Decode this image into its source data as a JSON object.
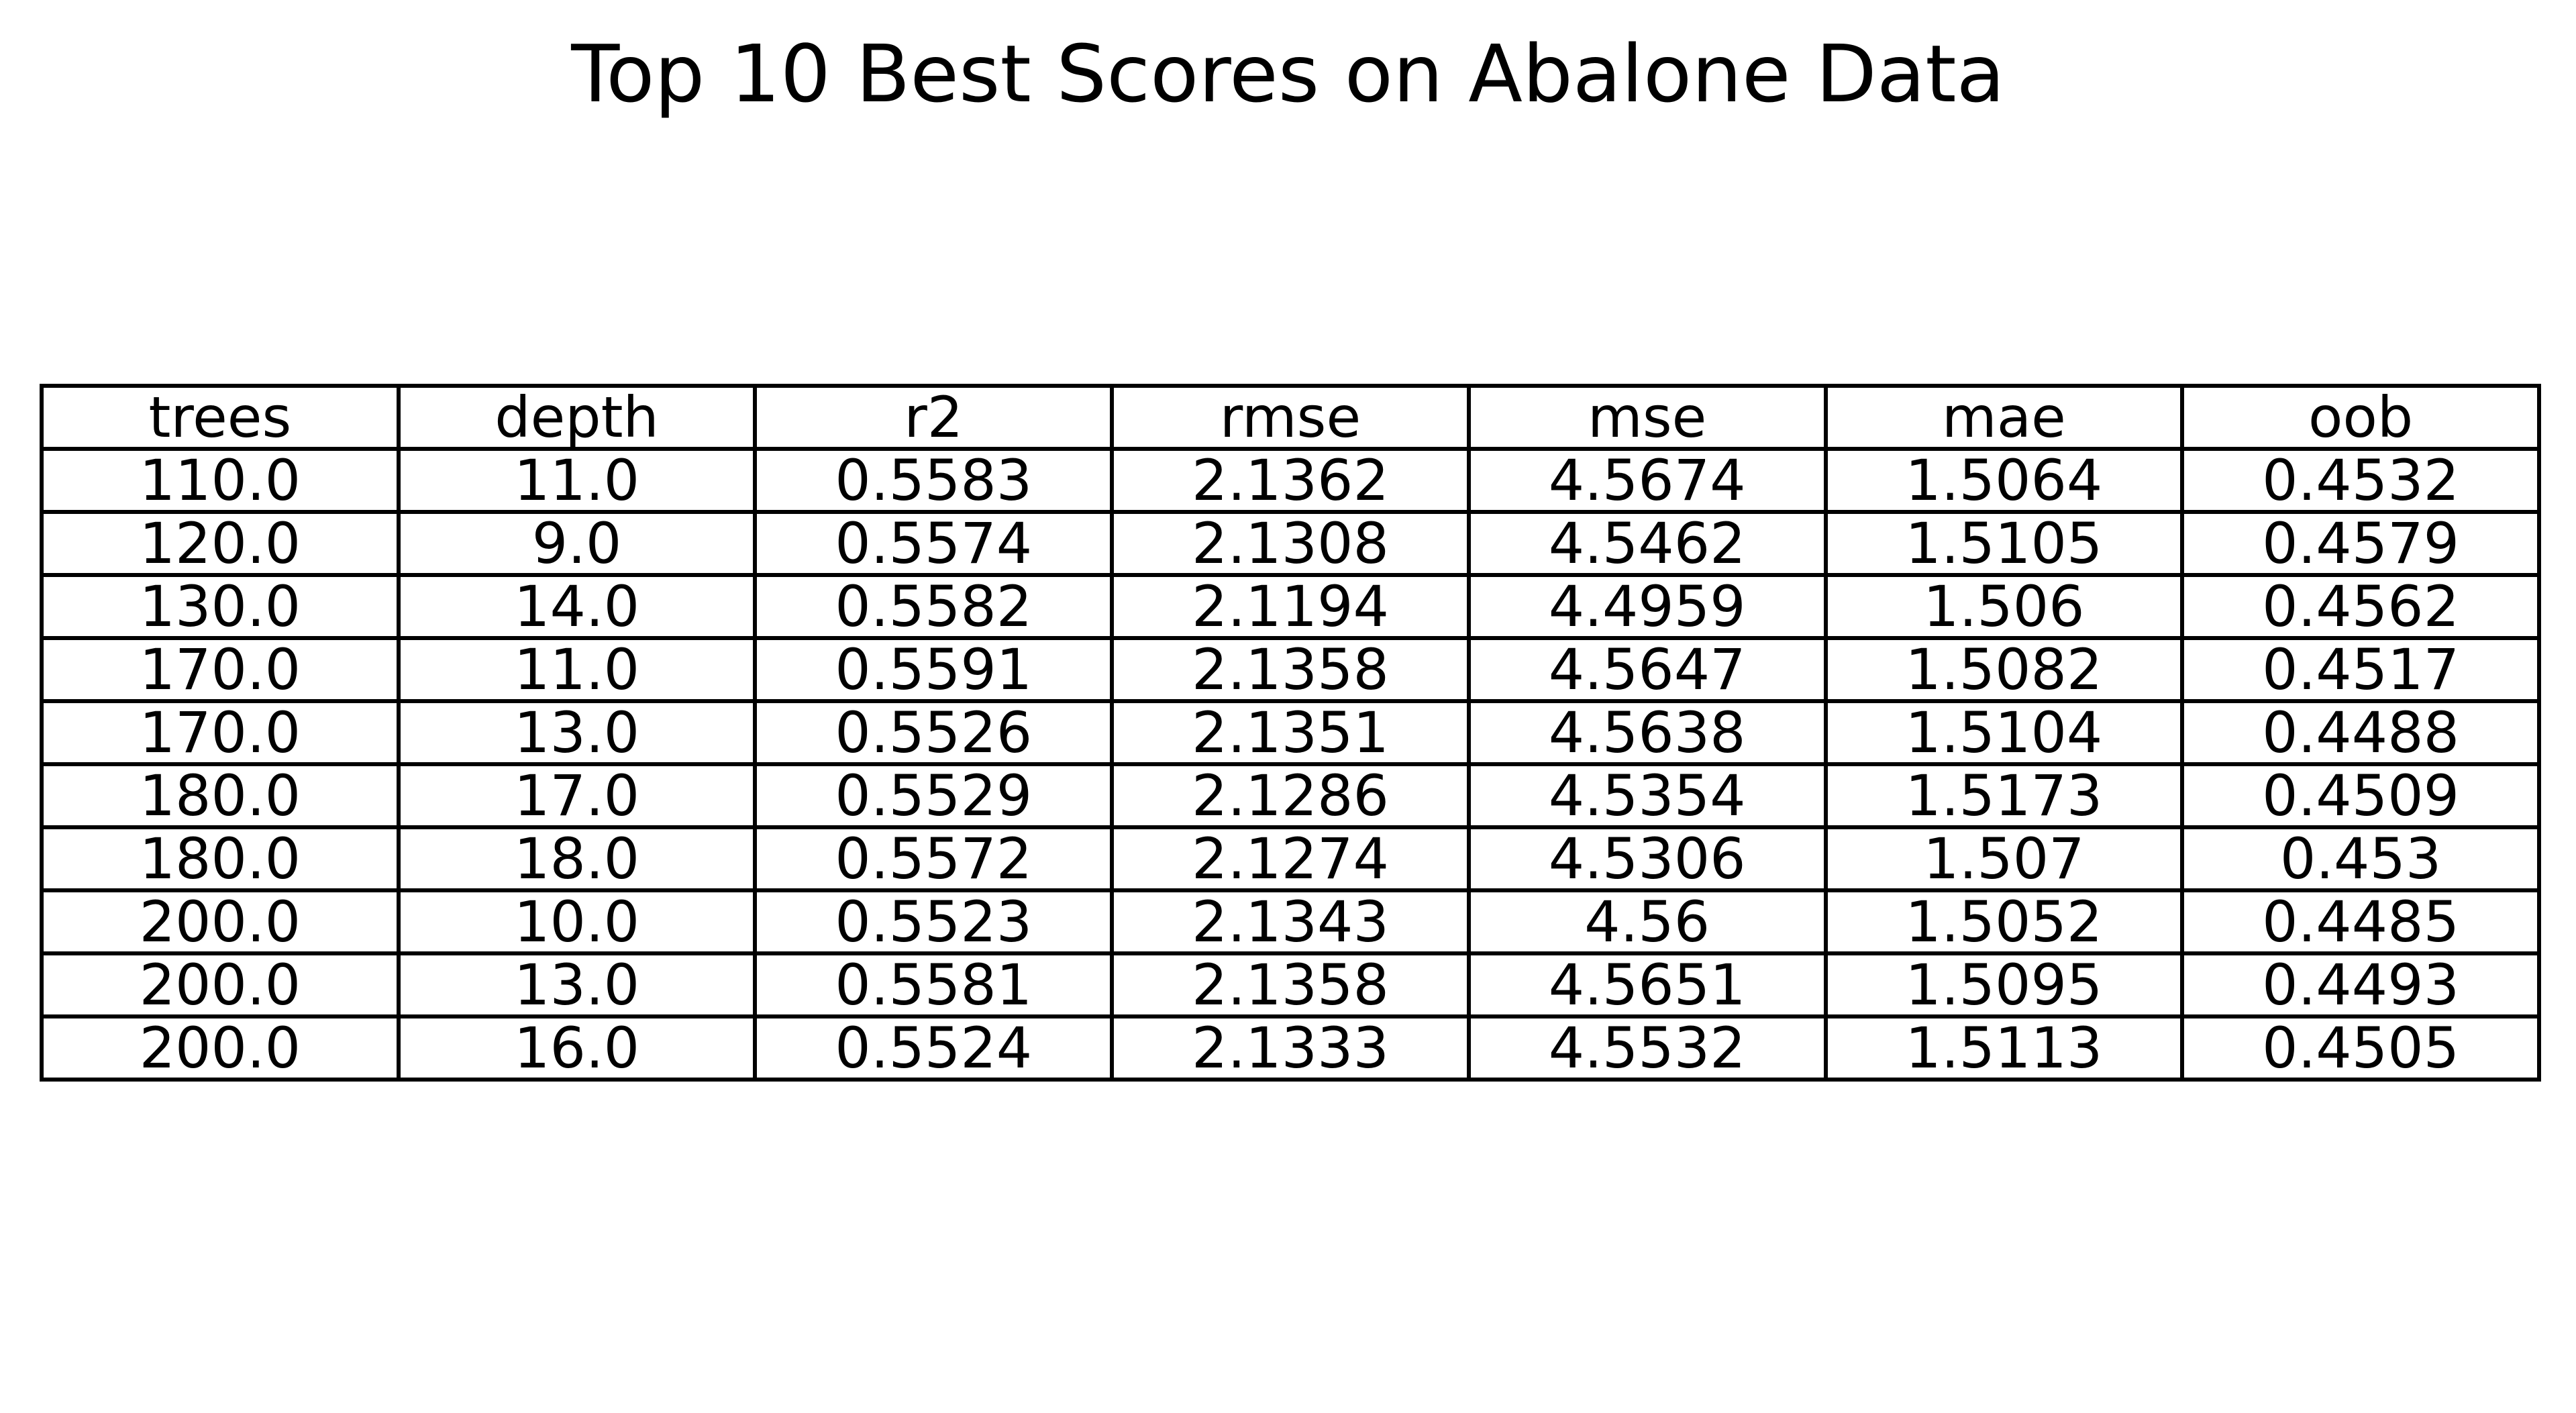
{
  "chart_data": {
    "type": "table",
    "title": "Top 10 Best Scores on Abalone Data",
    "columns": [
      "trees",
      "depth",
      "r2",
      "rmse",
      "mse",
      "mae",
      "oob"
    ],
    "rows": [
      [
        "110.0",
        "11.0",
        "0.5583",
        "2.1362",
        "4.5674",
        "1.5064",
        "0.4532"
      ],
      [
        "120.0",
        "9.0",
        "0.5574",
        "2.1308",
        "4.5462",
        "1.5105",
        "0.4579"
      ],
      [
        "130.0",
        "14.0",
        "0.5582",
        "2.1194",
        "4.4959",
        "1.506",
        "0.4562"
      ],
      [
        "170.0",
        "11.0",
        "0.5591",
        "2.1358",
        "4.5647",
        "1.5082",
        "0.4517"
      ],
      [
        "170.0",
        "13.0",
        "0.5526",
        "2.1351",
        "4.5638",
        "1.5104",
        "0.4488"
      ],
      [
        "180.0",
        "17.0",
        "0.5529",
        "2.1286",
        "4.5354",
        "1.5173",
        "0.4509"
      ],
      [
        "180.0",
        "18.0",
        "0.5572",
        "2.1274",
        "4.5306",
        "1.507",
        "0.453"
      ],
      [
        "200.0",
        "10.0",
        "0.5523",
        "2.1343",
        "4.56",
        "1.5052",
        "0.4485"
      ],
      [
        "200.0",
        "13.0",
        "0.5581",
        "2.1358",
        "4.5651",
        "1.5095",
        "0.4493"
      ],
      [
        "200.0",
        "16.0",
        "0.5524",
        "2.1333",
        "4.5532",
        "1.5113",
        "0.4505"
      ]
    ]
  }
}
